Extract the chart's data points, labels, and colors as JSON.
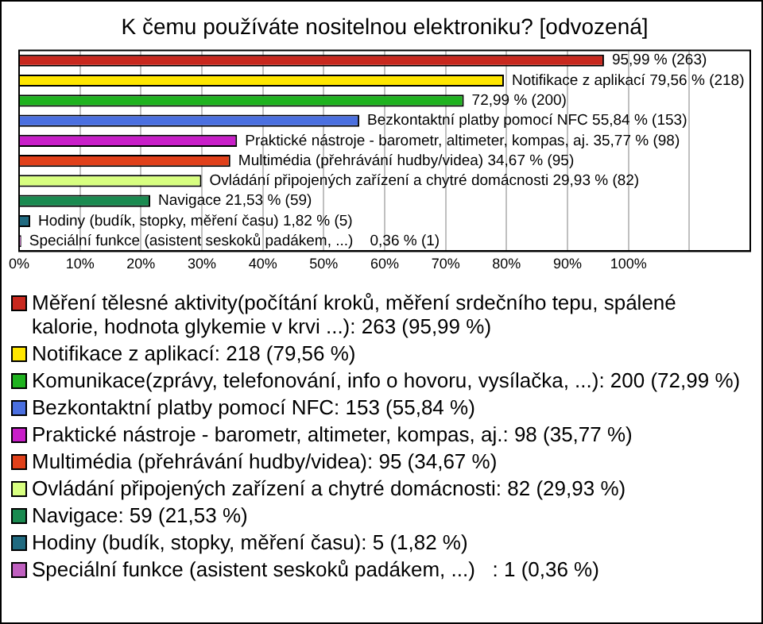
{
  "chart_data": {
    "type": "bar",
    "orientation": "horizontal",
    "title": "K čemu používáte nositelnou elektroniku? [odvozená]",
    "categories": [
      null,
      null,
      null,
      null,
      null,
      null,
      null,
      null,
      null,
      null
    ],
    "series": [
      {
        "name": "Měření tělesné aktivity(počítání kroků, měření srdečního tepu, spálené kalorie, hodnota glykemie v krvi ...): 263 (95,99 %)",
        "color": "#c8281e",
        "values": [
          95.99,
          null,
          null,
          null,
          null,
          null,
          null,
          null,
          null,
          null
        ],
        "value_labels": [
          "95,99 % (263)",
          null,
          null,
          null,
          null,
          null,
          null,
          null,
          null,
          null
        ]
      },
      {
        "name": "Notifikace z aplikací: 218 (79,56 %)",
        "color": "#ffe600",
        "values": [
          null,
          79.56,
          null,
          null,
          null,
          null,
          null,
          null,
          null,
          null
        ],
        "value_labels": [
          null,
          "Notifikace z aplikací 79,56 % (218)",
          null,
          null,
          null,
          null,
          null,
          null,
          null,
          null
        ]
      },
      {
        "name": "Komunikace(zprávy, telefonování, info o hovoru, vysílačka, ...): 200 (72,99 %)",
        "color": "#1fb21f",
        "values": [
          null,
          null,
          72.99,
          null,
          null,
          null,
          null,
          null,
          null,
          null
        ],
        "value_labels": [
          null,
          null,
          "72,99 % (200)",
          null,
          null,
          null,
          null,
          null,
          null,
          null
        ]
      },
      {
        "name": "Bezkontaktní platby pomocí NFC: 153 (55,84 %)",
        "color": "#4a6fe0",
        "values": [
          null,
          null,
          null,
          55.84,
          null,
          null,
          null,
          null,
          null,
          null
        ],
        "value_labels": [
          null,
          null,
          null,
          "Bezkontaktní platby pomocí NFC 55,84 % (153)",
          null,
          null,
          null,
          null,
          null,
          null
        ]
      },
      {
        "name": "Praktické nástroje - barometr, altimeter, kompas, aj.: 98 (35,77 %)",
        "color": "#c81ec8",
        "values": [
          null,
          null,
          null,
          null,
          35.77,
          null,
          null,
          null,
          null,
          null
        ],
        "value_labels": [
          null,
          null,
          null,
          null,
          "Praktické nástroje - barometr, altimeter, kompas, aj. 35,77 % (98)",
          null,
          null,
          null,
          null,
          null
        ]
      },
      {
        "name": "Multimédia (přehrávání hudby/videa): 95 (34,67 %)",
        "color": "#e0401a",
        "values": [
          null,
          null,
          null,
          null,
          null,
          34.67,
          null,
          null,
          null,
          null
        ],
        "value_labels": [
          null,
          null,
          null,
          null,
          null,
          "Multimédia (přehrávání hudby/videa) 34,67 % (95)",
          null,
          null,
          null,
          null
        ]
      },
      {
        "name": "Ovládání připojených zařízení a chytré domácnosti: 82 (29,93 %)",
        "color": "#d8ff80",
        "values": [
          null,
          null,
          null,
          null,
          null,
          null,
          29.93,
          null,
          null,
          null
        ],
        "value_labels": [
          null,
          null,
          null,
          null,
          null,
          null,
          "Ovládání připojených zařízení a chytré domácnosti 29,93 % (82)",
          null,
          null,
          null
        ]
      },
      {
        "name": "Navigace: 59 (21,53 %)",
        "color": "#1a8a50",
        "values": [
          null,
          null,
          null,
          null,
          null,
          null,
          null,
          21.53,
          null,
          null
        ],
        "value_labels": [
          null,
          null,
          null,
          null,
          null,
          null,
          null,
          "Navigace 21,53 % (59)",
          null,
          null
        ]
      },
      {
        "name": "Hodiny (budík, stopky, měření času): 5 (1,82 %)",
        "color": "#206a80",
        "values": [
          null,
          null,
          null,
          null,
          null,
          null,
          null,
          null,
          1.82,
          null
        ],
        "value_labels": [
          null,
          null,
          null,
          null,
          null,
          null,
          null,
          null,
          "Hodiny (budík, stopky, měření času) 1,82 % (5)",
          null
        ]
      },
      {
        "name": "Speciální funkce (asistent seskoků padákem, ...)   : 1 (0,36 %)",
        "color": "#c060c0",
        "values": [
          null,
          null,
          null,
          null,
          null,
          null,
          null,
          null,
          null,
          0.36
        ],
        "value_labels": [
          null,
          null,
          null,
          null,
          null,
          null,
          null,
          null,
          null,
          "Speciální funkce (asistent seskoků padákem, ...)    0,36 % (1)"
        ]
      }
    ],
    "xlim": [
      0,
      120
    ],
    "xticks": [
      {
        "value": 0,
        "label": "0%"
      },
      {
        "value": 10,
        "label": "10%"
      },
      {
        "value": 20,
        "label": "20%"
      },
      {
        "value": 30,
        "label": "30%"
      },
      {
        "value": 40,
        "label": "40%"
      },
      {
        "value": 50,
        "label": "50%"
      },
      {
        "value": 60,
        "label": "60%"
      },
      {
        "value": 70,
        "label": "70%"
      },
      {
        "value": 80,
        "label": "80%"
      },
      {
        "value": 90,
        "label": "90%"
      },
      {
        "value": 100,
        "label": "100%"
      },
      {
        "value": 110,
        "label": null
      },
      {
        "value": 120,
        "label": null
      }
    ],
    "tick_labels": "x",
    "grid": "x",
    "legend": "bottom"
  }
}
